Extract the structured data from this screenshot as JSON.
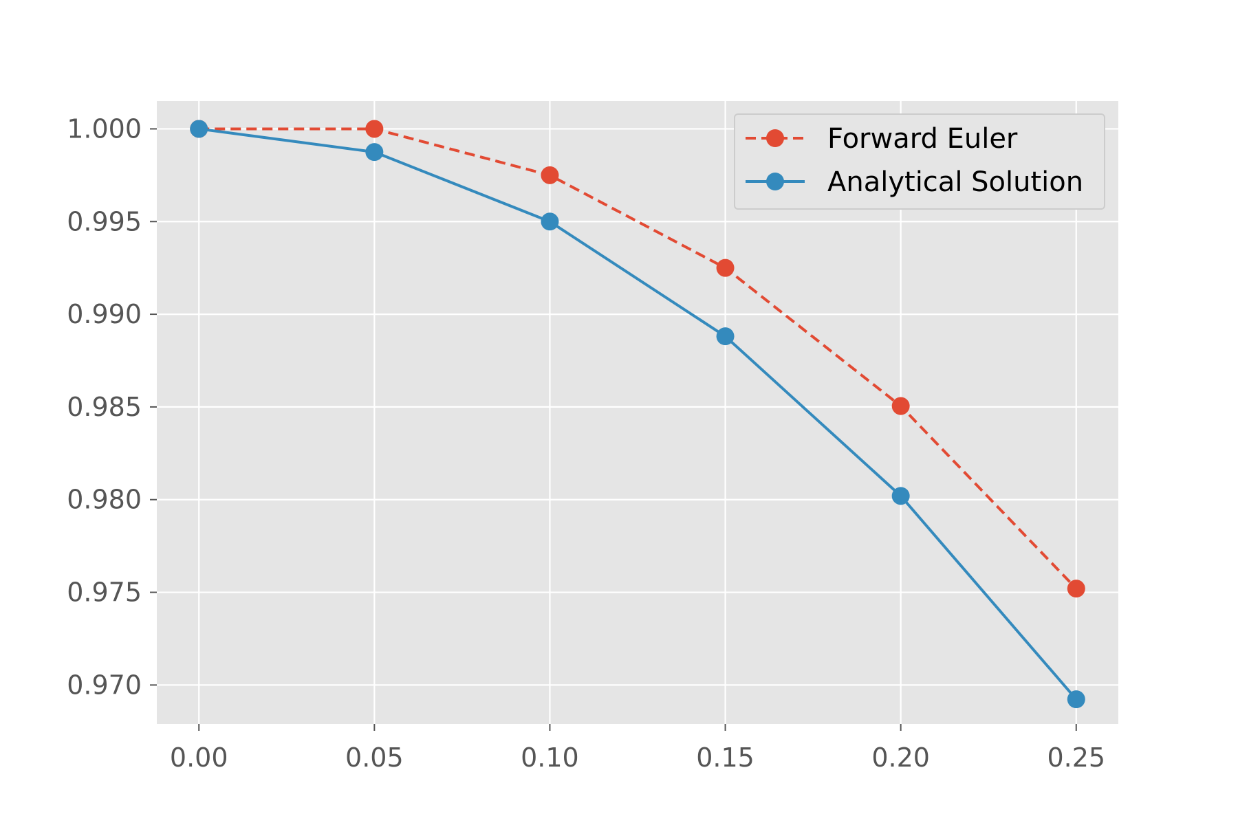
{
  "chart_data": {
    "type": "line",
    "title": "",
    "xlabel": "",
    "ylabel": "",
    "x": [
      0.0,
      0.05,
      0.1,
      0.15,
      0.2,
      0.25
    ],
    "xlim": [
      -0.012,
      0.262
    ],
    "ylim": [
      0.9679,
      1.0015
    ],
    "xticks": [
      0.0,
      0.05,
      0.1,
      0.15,
      0.2,
      0.25
    ],
    "xtick_labels": [
      "0.00",
      "0.05",
      "0.10",
      "0.15",
      "0.20",
      "0.25"
    ],
    "yticks": [
      1.0,
      0.995,
      0.99,
      0.985,
      0.98,
      0.975,
      0.97
    ],
    "ytick_labels": [
      "1.000",
      "0.995",
      "0.990",
      "0.985",
      "0.980",
      "0.975",
      "0.970"
    ],
    "grid": true,
    "legend_position": "top-right",
    "series": [
      {
        "name": "Forward Euler",
        "values": [
          1.0,
          1.0,
          0.9975,
          0.9925,
          0.98505,
          0.9752
        ],
        "color": "#E24A33",
        "line_style": "dashed",
        "marker": "circle"
      },
      {
        "name": "Analytical Solution",
        "values": [
          1.0,
          0.99875,
          0.995,
          0.98881,
          0.9802,
          0.96923
        ],
        "color": "#348ABD",
        "line_style": "solid",
        "marker": "circle"
      }
    ],
    "colors": {
      "plot_background": "#E5E5E5",
      "grid": "#FFFFFF",
      "tick_text": "#555555",
      "legend_background": "#E5E5E5",
      "legend_border": "#CCCCCC"
    }
  }
}
